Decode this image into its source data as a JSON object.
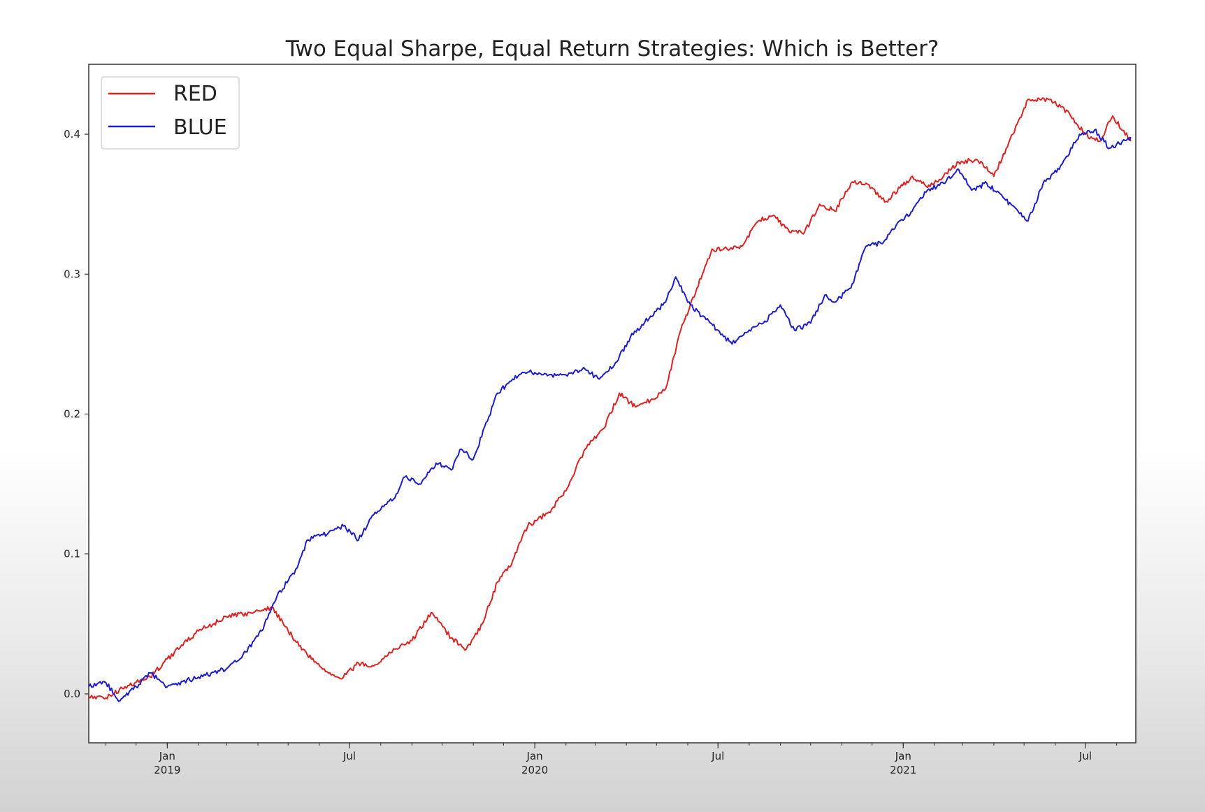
{
  "chart_data": {
    "type": "line",
    "title": "Two Equal Sharpe, Equal Return Strategies: Which is Better?",
    "xlabel": "",
    "ylabel": "",
    "x_type": "date",
    "xlim": [
      "2018-10-15",
      "2021-08-20"
    ],
    "ylim": [
      -0.035,
      0.45
    ],
    "yticks": [
      0.0,
      0.1,
      0.2,
      0.3,
      0.4
    ],
    "ytick_labels": [
      "0.0",
      "0.1",
      "0.2",
      "0.3",
      "0.4"
    ],
    "xticks": [
      {
        "date": "2019-01-01",
        "label": "Jan",
        "sublabel": "2019"
      },
      {
        "date": "2019-07-01",
        "label": "Jul",
        "sublabel": ""
      },
      {
        "date": "2020-01-01",
        "label": "Jan",
        "sublabel": "2020"
      },
      {
        "date": "2020-07-01",
        "label": "Jul",
        "sublabel": ""
      },
      {
        "date": "2021-01-01",
        "label": "Jan",
        "sublabel": "2021"
      },
      {
        "date": "2021-07-01",
        "label": "Jul",
        "sublabel": ""
      }
    ],
    "grid": false,
    "legend_position": "top-left",
    "series": [
      {
        "name": "RED",
        "color": "#dd2222",
        "points": [
          [
            "2018-10-15",
            -0.002
          ],
          [
            "2018-11-01",
            -0.003
          ],
          [
            "2018-11-20",
            0.005
          ],
          [
            "2018-12-15",
            0.012
          ],
          [
            "2019-01-01",
            0.025
          ],
          [
            "2019-02-01",
            0.045
          ],
          [
            "2019-03-01",
            0.055
          ],
          [
            "2019-03-25",
            0.058
          ],
          [
            "2019-04-15",
            0.062
          ],
          [
            "2019-05-01",
            0.045
          ],
          [
            "2019-05-20",
            0.028
          ],
          [
            "2019-06-10",
            0.015
          ],
          [
            "2019-06-25",
            0.012
          ],
          [
            "2019-07-10",
            0.022
          ],
          [
            "2019-07-25",
            0.02
          ],
          [
            "2019-08-15",
            0.032
          ],
          [
            "2019-09-01",
            0.038
          ],
          [
            "2019-09-20",
            0.058
          ],
          [
            "2019-10-10",
            0.04
          ],
          [
            "2019-10-25",
            0.032
          ],
          [
            "2019-11-10",
            0.05
          ],
          [
            "2019-11-25",
            0.08
          ],
          [
            "2019-12-10",
            0.095
          ],
          [
            "2019-12-25",
            0.12
          ],
          [
            "2020-01-15",
            0.13
          ],
          [
            "2020-02-01",
            0.145
          ],
          [
            "2020-02-20",
            0.175
          ],
          [
            "2020-03-10",
            0.19
          ],
          [
            "2020-03-25",
            0.215
          ],
          [
            "2020-04-10",
            0.205
          ],
          [
            "2020-04-25",
            0.21
          ],
          [
            "2020-05-10",
            0.218
          ],
          [
            "2020-05-25",
            0.26
          ],
          [
            "2020-06-10",
            0.29
          ],
          [
            "2020-06-25",
            0.318
          ],
          [
            "2020-07-10",
            0.318
          ],
          [
            "2020-07-25",
            0.32
          ],
          [
            "2020-08-10",
            0.338
          ],
          [
            "2020-08-25",
            0.342
          ],
          [
            "2020-09-10",
            0.33
          ],
          [
            "2020-09-25",
            0.33
          ],
          [
            "2020-10-10",
            0.35
          ],
          [
            "2020-10-25",
            0.345
          ],
          [
            "2020-11-10",
            0.365
          ],
          [
            "2020-11-25",
            0.365
          ],
          [
            "2020-12-15",
            0.352
          ],
          [
            "2021-01-10",
            0.37
          ],
          [
            "2021-01-25",
            0.362
          ],
          [
            "2021-02-10",
            0.37
          ],
          [
            "2021-02-25",
            0.38
          ],
          [
            "2021-03-15",
            0.382
          ],
          [
            "2021-04-01",
            0.37
          ],
          [
            "2021-04-20",
            0.4
          ],
          [
            "2021-05-05",
            0.425
          ],
          [
            "2021-05-25",
            0.425
          ],
          [
            "2021-06-15",
            0.415
          ],
          [
            "2021-07-01",
            0.4
          ],
          [
            "2021-07-15",
            0.395
          ],
          [
            "2021-07-28",
            0.413
          ],
          [
            "2021-08-15",
            0.395
          ]
        ]
      },
      {
        "name": "BLUE",
        "color": "#1c1ccc",
        "points": [
          [
            "2018-10-15",
            0.005
          ],
          [
            "2018-11-01",
            0.008
          ],
          [
            "2018-11-15",
            -0.005
          ],
          [
            "2018-12-01",
            0.005
          ],
          [
            "2018-12-15",
            0.015
          ],
          [
            "2019-01-01",
            0.005
          ],
          [
            "2019-02-01",
            0.012
          ],
          [
            "2019-03-01",
            0.018
          ],
          [
            "2019-03-20",
            0.03
          ],
          [
            "2019-04-05",
            0.045
          ],
          [
            "2019-04-20",
            0.07
          ],
          [
            "2019-05-10",
            0.09
          ],
          [
            "2019-05-20",
            0.11
          ],
          [
            "2019-06-10",
            0.115
          ],
          [
            "2019-06-25",
            0.12
          ],
          [
            "2019-07-10",
            0.11
          ],
          [
            "2019-07-25",
            0.128
          ],
          [
            "2019-08-15",
            0.14
          ],
          [
            "2019-08-25",
            0.155
          ],
          [
            "2019-09-10",
            0.15
          ],
          [
            "2019-09-25",
            0.165
          ],
          [
            "2019-10-10",
            0.16
          ],
          [
            "2019-10-20",
            0.175
          ],
          [
            "2019-11-01",
            0.168
          ],
          [
            "2019-11-15",
            0.195
          ],
          [
            "2019-11-25",
            0.215
          ],
          [
            "2019-12-10",
            0.225
          ],
          [
            "2019-12-25",
            0.23
          ],
          [
            "2020-01-15",
            0.228
          ],
          [
            "2020-02-01",
            0.228
          ],
          [
            "2020-02-20",
            0.232
          ],
          [
            "2020-03-05",
            0.225
          ],
          [
            "2020-03-20",
            0.235
          ],
          [
            "2020-04-05",
            0.255
          ],
          [
            "2020-04-25",
            0.27
          ],
          [
            "2020-05-10",
            0.28
          ],
          [
            "2020-05-20",
            0.298
          ],
          [
            "2020-06-01",
            0.28
          ],
          [
            "2020-06-15",
            0.27
          ],
          [
            "2020-07-01",
            0.26
          ],
          [
            "2020-07-15",
            0.25
          ],
          [
            "2020-08-01",
            0.26
          ],
          [
            "2020-08-15",
            0.265
          ],
          [
            "2020-09-01",
            0.278
          ],
          [
            "2020-09-15",
            0.26
          ],
          [
            "2020-10-01",
            0.265
          ],
          [
            "2020-10-15",
            0.285
          ],
          [
            "2020-10-25",
            0.28
          ],
          [
            "2020-11-10",
            0.29
          ],
          [
            "2020-11-25",
            0.32
          ],
          [
            "2020-12-10",
            0.322
          ],
          [
            "2020-12-25",
            0.335
          ],
          [
            "2021-01-10",
            0.345
          ],
          [
            "2021-01-25",
            0.36
          ],
          [
            "2021-02-10",
            0.365
          ],
          [
            "2021-02-25",
            0.375
          ],
          [
            "2021-03-10",
            0.36
          ],
          [
            "2021-03-25",
            0.365
          ],
          [
            "2021-04-10",
            0.355
          ],
          [
            "2021-04-25",
            0.345
          ],
          [
            "2021-05-05",
            0.338
          ],
          [
            "2021-05-20",
            0.365
          ],
          [
            "2021-06-05",
            0.375
          ],
          [
            "2021-06-25",
            0.4
          ],
          [
            "2021-07-10",
            0.403
          ],
          [
            "2021-07-25",
            0.39
          ],
          [
            "2021-08-15",
            0.398
          ]
        ]
      }
    ]
  }
}
